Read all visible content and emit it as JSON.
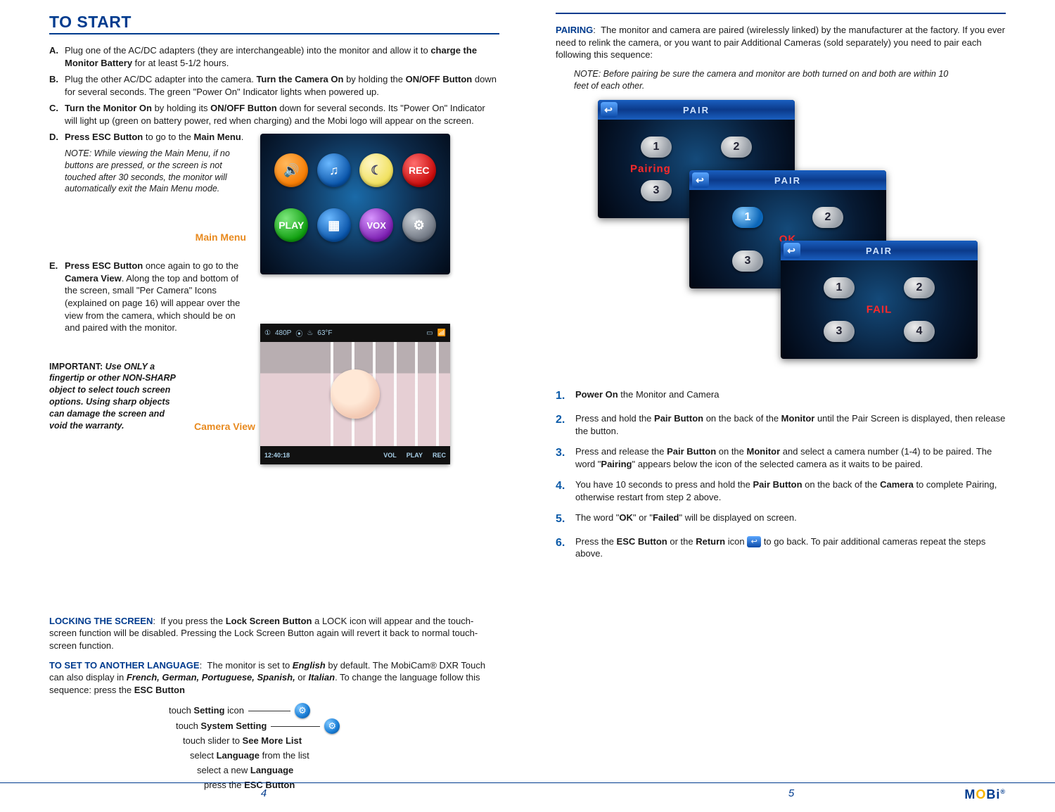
{
  "leftPage": {
    "title": "TO START",
    "steps": {
      "A": {
        "marker": "A.",
        "text": "Plug one of the AC/DC adapters (they are interchangeable) into the monitor and allow it to <b>charge the Monitor Battery</b> for at least 5-1/2 hours."
      },
      "B": {
        "marker": "B.",
        "text": "Plug the other AC/DC adapter into the camera. <b>Turn the Camera On</b> by holding the <b>ON/OFF Button</b> down for several seconds. The green \"Power On\" Indicator lights when powered up."
      },
      "C": {
        "marker": "C.",
        "text": "<b>Turn the Monitor On</b> by holding its <b>ON/OFF Button</b> down for several seconds. Its \"Power On\" Indicator will light up (green on battery power, red when charging) and the Mobi logo will appear on the screen."
      },
      "D": {
        "marker": "D.",
        "text": "<b>Press ESC Button</b> to go to the <b>Main Menu</b>."
      },
      "E": {
        "marker": "E.",
        "text": "<b>Press ESC Button</b> once again to go to the <b>Camera View</b>. Along the top and bottom of the screen, small \"Per Camera\" Icons (explained on page 16) will appear over the view from the camera, which should be on and paired with the monitor."
      }
    },
    "noteD": "NOTE:  While viewing the Main Menu, if no buttons are pressed, or the screen is not touched after 30 seconds, the monitor will automatically exit the Main Menu mode.",
    "mainMenuLabel": "Main Menu",
    "cameraViewLabel": "Camera View",
    "important": "<b>IMPORTANT:</b>  <i><b>Use ONLY a fingertip or other NON-SHARP object to select touch screen options. Using sharp objects can damage the screen and void the warranty.</b></i>",
    "lockingTitle": "LOCKING THE SCREEN",
    "lockingBody": "If you press the <b>Lock Screen Button</b> a LOCK icon will appear and the touch-screen function will be disabled. Pressing the Lock Screen Button again will revert it back to normal touch-screen function.",
    "langTitle": "TO SET TO ANOTHER LANGUAGE",
    "langBody": "The monitor is set to <i><b>English</b></i> by default. The MobiCam® DXR Touch can also display in <i><b>French, German, Portuguese, Spanish,</b></i> or <i><b>Italian</b></i>. To change the language follow this sequence:   press the <b>ESC Button</b>",
    "langSteps": {
      "s1": "touch <b>Setting</b> icon",
      "s2": "touch <b>System Setting</b>",
      "s3": "touch slider to <b>See More List</b>",
      "s4": "select <b>Language</b> from the list",
      "s5": "select a new <b>Language</b>",
      "s6": "press the <b>ESC Button</b>"
    },
    "mainMenuIcons": {
      "row1": [
        "🔊",
        "♫",
        "☾",
        "REC"
      ],
      "row2": [
        "PLAY",
        "▦",
        "VOX",
        "⚙"
      ]
    },
    "cameraTop": [
      "①",
      "480P",
      "⦿",
      "♨",
      "63°F",
      "▭",
      "📶"
    ],
    "cameraBot": [
      "12:40:18",
      "VOL",
      "PLAY",
      "REC"
    ],
    "pageNum": "4"
  },
  "rightPage": {
    "pairingTitle": "PAIRING",
    "pairingIntro": "The monitor and camera are paired (wirelessly linked) by the manufacturer at the factory. If you ever need to relink the camera, or you want to pair Additional Cameras (sold separately) you need to pair each following this sequence:",
    "pairingNote": "NOTE: Before pairing be sure the camera and monitor are both turned on and both are within 10 feet of each other.",
    "pairTitle": "PAIR",
    "statusPairing": "Pairing",
    "statusOK": "OK",
    "statusFail": "FAIL",
    "steps": {
      "1": "<b>Power On</b> the Monitor and Camera",
      "2": "Press and hold the <b>Pair Button</b> on the back of the <b>Monitor</b> until the Pair Screen is displayed, then release the button.",
      "3": "Press and release the <b>Pair Button</b> on the <b>Monitor</b> and select a camera number (1-4) to be paired. The word \"<b>Pairing</b>\" appears below the icon of the selected camera as it waits to be paired.",
      "4": "You have 10 seconds to press and hold the <b>Pair Button</b> on the back of the <b>Camera</b> to complete Pairing, otherwise restart from step 2 above.",
      "5": "The word \"<b>OK</b>\" or \"<b>Failed</b>\" will be displayed on screen.",
      "6a": "Press the <b>ESC Button</b> or the <b>Return</b> icon ",
      "6b": " to go back.  To pair additional cameras repeat the steps above."
    },
    "pageNum": "5",
    "logo": {
      "pre": "M",
      "o": "O",
      "post": "Bi",
      "reg": "®"
    }
  },
  "colors": {
    "blue": "#003b8e",
    "orange": "#e88a1f",
    "red": "#ff2a2a"
  }
}
